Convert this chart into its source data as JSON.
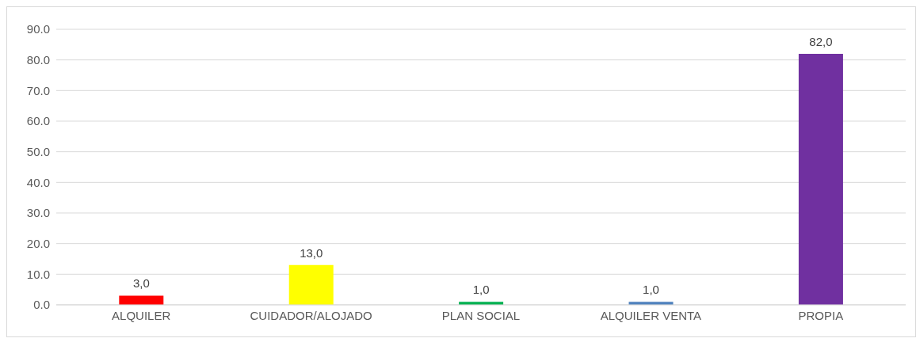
{
  "chart_data": {
    "type": "bar",
    "categories": [
      "ALQUILER",
      "CUIDADOR/ALOJADO",
      "PLAN SOCIAL",
      "ALQUILER VENTA",
      "PROPIA"
    ],
    "values": [
      3,
      13,
      1,
      1,
      82
    ],
    "colors": [
      "#ff0000",
      "#ffff00",
      "#00b050",
      "#4f81bd",
      "#7030a0"
    ],
    "value_labels": [
      "3,0",
      "13,0",
      "1,0",
      "1,0",
      "82,0"
    ],
    "ylim": [
      0,
      90
    ],
    "yticks": [
      {
        "value": 0,
        "label": "0.0"
      },
      {
        "value": 10,
        "label": "10.0"
      },
      {
        "value": 20,
        "label": "20.0"
      },
      {
        "value": 30,
        "label": "30.0"
      },
      {
        "value": 40,
        "label": "40.0"
      },
      {
        "value": 50,
        "label": "50.0"
      },
      {
        "value": 60,
        "label": "60.0"
      },
      {
        "value": 70,
        "label": "70.0"
      },
      {
        "value": 80,
        "label": "80.0"
      },
      {
        "value": 90,
        "label": "90.0"
      }
    ],
    "grid": "y"
  }
}
